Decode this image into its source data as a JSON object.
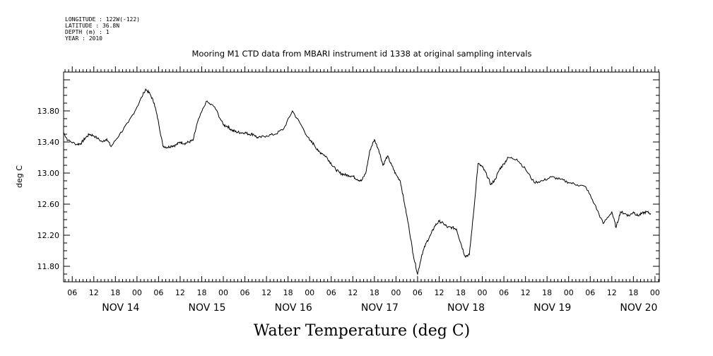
{
  "header_info": {
    "longitude": "LONGITUDE : 122W(-122)",
    "latitude": "LATITUDE : 36.8N",
    "depth": "DEPTH (m) : 1",
    "year": "YEAR : 2010"
  },
  "chart_data": {
    "type": "line",
    "title": "Mooring M1 CTD data from MBARI instrument id 1338 at original sampling intervals",
    "ylabel": "deg C",
    "xlabel": "Water Temperature (deg C)",
    "ylim": [
      11.6,
      14.3
    ],
    "xlim": [
      -0.35,
      6.55
    ],
    "yticks": [
      11.8,
      12.2,
      12.6,
      13.0,
      13.4,
      13.8
    ],
    "ytick_labels": [
      "11.80",
      "12.20",
      "12.60",
      "13.00",
      "13.40",
      "13.80"
    ],
    "hour_tick_labels": [
      "06",
      "12",
      "18",
      "00",
      "06",
      "12",
      "18",
      "00",
      "06",
      "12",
      "18",
      "00",
      "06",
      "12",
      "18",
      "00",
      "06",
      "12",
      "18",
      "00",
      "06",
      "12",
      "18",
      "00",
      "06",
      "12",
      "18",
      "00"
    ],
    "day_labels": [
      "NOV 14",
      "NOV 15",
      "NOV 16",
      "NOV 17",
      "NOV 18",
      "NOV 19",
      "NOV 20"
    ],
    "grid": false,
    "series": [
      {
        "x": [
          -0.35,
          -0.3,
          -0.2,
          -0.15,
          -0.1,
          -0.05,
          0,
          0.1,
          0.15,
          0.2,
          0.3,
          0.4,
          0.5,
          0.6,
          0.65,
          0.7,
          0.75,
          0.8,
          0.85,
          0.9,
          0.95,
          1.0,
          1.05,
          1.1,
          1.15,
          1.2,
          1.3,
          1.4,
          1.5,
          1.55,
          1.6,
          1.65,
          1.7,
          1.75,
          1.8,
          1.85,
          1.9,
          2.0,
          2.1,
          2.2,
          2.3,
          2.4,
          2.5,
          2.55,
          2.6,
          2.65,
          2.7,
          2.75,
          2.8,
          2.85,
          2.9,
          2.95,
          3.0,
          3.05,
          3.1,
          3.15,
          3.2,
          3.25,
          3.3,
          3.35,
          3.4,
          3.45,
          3.5,
          3.55,
          3.6,
          3.65,
          3.7,
          3.75,
          3.8,
          3.85,
          3.9,
          3.95,
          4.0,
          4.05,
          4.1,
          4.15,
          4.2,
          4.25,
          4.3,
          4.35,
          4.4,
          4.45,
          4.5,
          4.55,
          4.6,
          4.65,
          4.7,
          4.75,
          4.8,
          4.9,
          5.0,
          5.1,
          5.2,
          5.3,
          5.4,
          5.5,
          5.6,
          5.7,
          5.8,
          5.9,
          6.0,
          6.05,
          6.1,
          6.15,
          6.2,
          6.25,
          6.3,
          6.35,
          6.4,
          6.45
        ],
        "y": [
          13.52,
          13.42,
          13.37,
          13.38,
          13.45,
          13.5,
          13.48,
          13.4,
          13.44,
          13.34,
          13.5,
          13.65,
          13.85,
          14.08,
          14.02,
          13.9,
          13.65,
          13.35,
          13.33,
          13.35,
          13.36,
          13.4,
          13.38,
          13.4,
          13.42,
          13.65,
          13.92,
          13.85,
          13.62,
          13.6,
          13.55,
          13.53,
          13.52,
          13.52,
          13.5,
          13.5,
          13.45,
          13.48,
          13.5,
          13.57,
          13.8,
          13.62,
          13.42,
          13.37,
          13.28,
          13.25,
          13.2,
          13.12,
          13.05,
          13.0,
          12.98,
          12.97,
          12.96,
          12.92,
          12.9,
          13.0,
          13.3,
          13.43,
          13.3,
          13.1,
          13.22,
          13.1,
          12.98,
          12.9,
          12.6,
          12.3,
          11.95,
          11.7,
          11.95,
          12.1,
          12.2,
          12.32,
          12.38,
          12.35,
          12.3,
          12.3,
          12.28,
          12.1,
          11.93,
          11.95,
          12.5,
          13.12,
          13.08,
          12.98,
          12.85,
          12.92,
          13.05,
          13.12,
          13.2,
          13.18,
          13.05,
          12.88,
          12.9,
          12.95,
          12.92,
          12.88,
          12.85,
          12.82,
          12.6,
          12.35,
          12.5,
          12.3,
          12.5,
          12.48,
          12.45,
          12.5,
          12.45,
          12.48,
          12.5,
          12.48
        ]
      }
    ]
  }
}
